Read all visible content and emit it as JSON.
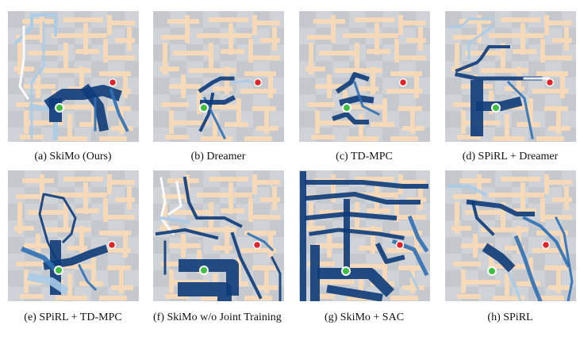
{
  "figure": {
    "panels": [
      {
        "id": "a",
        "caption": "(a) SkiMo (Ours)"
      },
      {
        "id": "b",
        "caption": "(b) Dreamer"
      },
      {
        "id": "c",
        "caption": "(c) TD-MPC"
      },
      {
        "id": "d",
        "caption": "(d) SPiRL + Dreamer"
      },
      {
        "id": "e",
        "caption": "(e) SPiRL + TD-MPC"
      },
      {
        "id": "f",
        "caption": "(f) SkiMo w/o Joint Training"
      },
      {
        "id": "g",
        "caption": "(g) SkiMo + SAC"
      },
      {
        "id": "h",
        "caption": "(h) SPiRL"
      }
    ]
  },
  "colors": {
    "wall": "#f6d9b8",
    "floor_light": "#cfd3d8",
    "floor_dark": "#b8bdc3",
    "trajectory_dark": "#0d3b7a",
    "trajectory_mid": "#2e6fb5",
    "trajectory_light": "#a9cbe8",
    "goal": "#e0242b",
    "start": "#3fbf3f"
  }
}
